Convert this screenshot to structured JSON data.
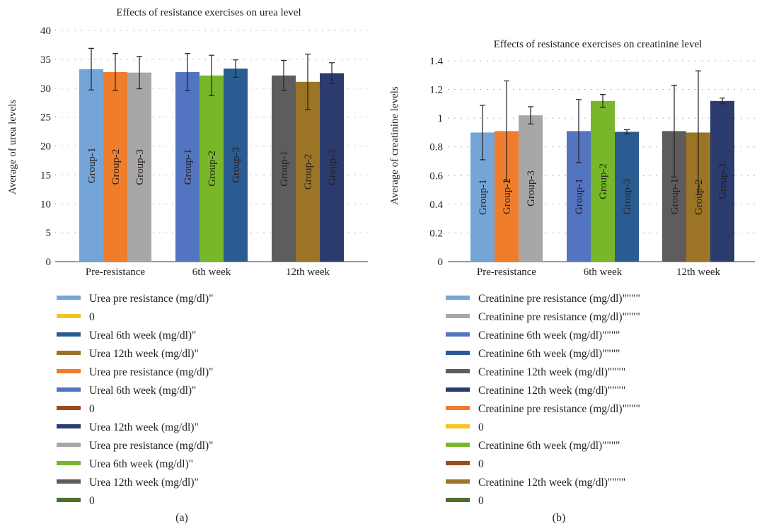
{
  "chart_data": [
    {
      "type": "bar",
      "panel": "a",
      "title": "Effects of resistance exercises on urea level",
      "ylabel": "Average of urea levels",
      "xlabel": "",
      "ylim": [
        0,
        40
      ],
      "yticks": [
        "0",
        "5",
        "10",
        "15",
        "20",
        "25",
        "30",
        "35",
        "40"
      ],
      "grid": "horizontal dotted",
      "legend_position": "bottom",
      "categories": [
        "Pre-resistance",
        "6th week",
        "12th week"
      ],
      "bar_labels": [
        "Group-1",
        "Group-2",
        "Group-3"
      ],
      "groups": [
        {
          "category": "Pre-resistance",
          "values": [
            33.3,
            32.8,
            32.7
          ],
          "errors": [
            3.6,
            3.2,
            2.8
          ],
          "colors": [
            "#75a5d6",
            "#ef7d2b",
            "#a8a6a6"
          ]
        },
        {
          "category": "6th week",
          "values": [
            32.8,
            32.2,
            33.4
          ],
          "errors": [
            3.2,
            3.5,
            1.5
          ],
          "colors": [
            "#5274c1",
            "#77b729",
            "#2a5c91"
          ]
        },
        {
          "category": "12th week",
          "values": [
            32.2,
            31.1,
            32.6
          ],
          "errors": [
            2.6,
            4.8,
            1.8
          ],
          "colors": [
            "#5e5c5d",
            "#9b7426",
            "#2b3b6e"
          ]
        }
      ],
      "legend": [
        {
          "label": "Urea pre resistance (mg/dl)\"",
          "color": "#75a5d6"
        },
        {
          "label": "0",
          "color": "#f6c324"
        },
        {
          "label": "Ureal 6th week (mg/dl)\"",
          "color": "#2a5c91"
        },
        {
          "label": "Urea 12th week (mg/dl)\"",
          "color": "#9b7426"
        },
        {
          "label": "Urea pre resistance (mg/dl)\"",
          "color": "#ef7d2b"
        },
        {
          "label": "Ureal 6th week (mg/dl)\"",
          "color": "#5274c1"
        },
        {
          "label": "0",
          "color": "#9e4820"
        },
        {
          "label": "Urea 12th week (mg/dl)\"",
          "color": "#2b3b6e"
        },
        {
          "label": "Urea pre resistance (mg/dl)\"",
          "color": "#a8a6a6"
        },
        {
          "label": "Urea 6th week (mg/dl)\"",
          "color": "#77b729"
        },
        {
          "label": "Urea 12th week (mg/dl)\"",
          "color": "#5e5c5d"
        },
        {
          "label": "0",
          "color": "#4c6f2d"
        }
      ]
    },
    {
      "type": "bar",
      "panel": "b",
      "title": "Effects of resistance exercises on creatinine level",
      "ylabel": "Average of creatinine levels",
      "xlabel": "",
      "ylim": [
        0,
        1.4
      ],
      "yticks": [
        "0",
        "0.2",
        "0.4",
        "0.6",
        "0.8",
        "1",
        "1.2",
        "1.4"
      ],
      "grid": "horizontal dotted",
      "legend_position": "bottom",
      "categories": [
        "Pre-resistance",
        "6th week",
        "12th week"
      ],
      "bar_labels": [
        "Group-1",
        "Group-2",
        "Group-3"
      ],
      "groups": [
        {
          "category": "Pre-resistance",
          "values": [
            0.9,
            0.91,
            1.02
          ],
          "errors": [
            0.19,
            0.35,
            0.06
          ],
          "colors": [
            "#75a5d6",
            "#ef7d2b",
            "#a8a6a6"
          ]
        },
        {
          "category": "6th week",
          "values": [
            0.91,
            1.12,
            0.905
          ],
          "errors": [
            0.22,
            0.045,
            0.015
          ],
          "colors": [
            "#5274c1",
            "#77b729",
            "#2a5c91"
          ]
        },
        {
          "category": "12th week",
          "values": [
            0.91,
            0.9,
            1.12
          ],
          "errors": [
            0.32,
            0.43,
            0.02
          ],
          "colors": [
            "#5e5c5d",
            "#9b7426",
            "#2b3b6e"
          ]
        }
      ],
      "legend": [
        {
          "label": "Creatinine pre resistance (mg/dl)\"\"\"\"",
          "color": "#75a5d6"
        },
        {
          "label": "Creatinine pre resistance (mg/dl)\"\"\"\"",
          "color": "#a8a6a6"
        },
        {
          "label": "Creatinine 6th week (mg/dl)\"\"\"\"",
          "color": "#5274c1"
        },
        {
          "label": "Creatinine 6th week (mg/dl)\"\"\"\"",
          "color": "#2a5c91"
        },
        {
          "label": "Creatinine 12th week (mg/dl)\"\"\"\"",
          "color": "#5e5c5d"
        },
        {
          "label": "Creatinine 12th week (mg/dl)\"\"\"\"",
          "color": "#2b3b6e"
        },
        {
          "label": "Creatinine pre resistance (mg/dl)\"\"\"\"",
          "color": "#ef7d2b"
        },
        {
          "label": "0",
          "color": "#f6c324"
        },
        {
          "label": "Creatinine 6th week (mg/dl)\"\"\"\"",
          "color": "#77b729"
        },
        {
          "label": "0",
          "color": "#9e4820"
        },
        {
          "label": "Creatinine 12th week (mg/dl)\"\"\"\"",
          "color": "#9b7426"
        },
        {
          "label": "0",
          "color": "#4c6f2d"
        }
      ]
    }
  ],
  "captions": {
    "a": "(a)",
    "b": "(b)"
  }
}
